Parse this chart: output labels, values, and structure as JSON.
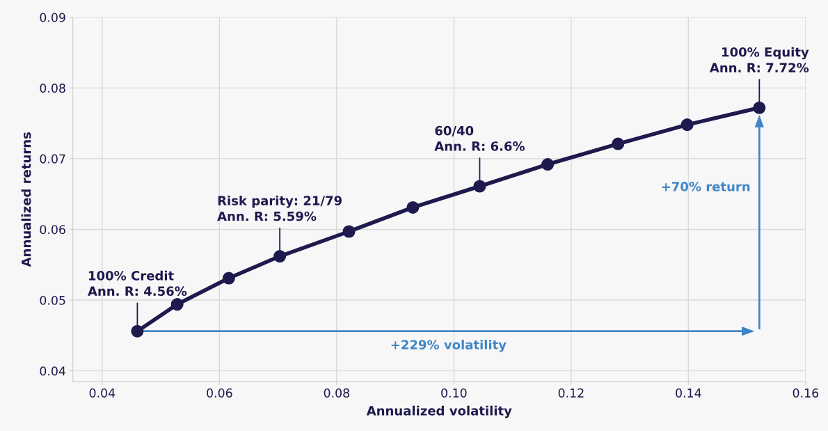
{
  "chart_data": {
    "type": "line",
    "xlabel": "Annualized volatility",
    "ylabel": "Annualized returns",
    "x": [
      0.046,
      0.0528,
      0.0616,
      0.0703,
      0.0821,
      0.093,
      0.1044,
      0.116,
      0.128,
      0.1398,
      0.1521
    ],
    "series": [
      {
        "color": "#1e1a4d",
        "values": [
          0.0456,
          0.0494,
          0.0531,
          0.0562,
          0.0597,
          0.0631,
          0.0661,
          0.0692,
          0.0721,
          0.0748,
          0.0772
        ]
      }
    ],
    "xlim": [
      0.035,
      0.16
    ],
    "ylim": [
      0.0385,
      0.09
    ],
    "xticks": [
      {
        "value": 0.04,
        "label": "0.04"
      },
      {
        "value": 0.06,
        "label": "0.06"
      },
      {
        "value": 0.08,
        "label": "0.08"
      },
      {
        "value": 0.1,
        "label": "0.10"
      },
      {
        "value": 0.12,
        "label": "0.12"
      },
      {
        "value": 0.14,
        "label": "0.14"
      },
      {
        "value": 0.16,
        "label": "0.16"
      }
    ],
    "yticks": [
      {
        "value": 0.04,
        "label": "0.04"
      },
      {
        "value": 0.05,
        "label": "0.05"
      },
      {
        "value": 0.06,
        "label": "0.06"
      },
      {
        "value": 0.07,
        "label": "0.07"
      },
      {
        "value": 0.08,
        "label": "0.08"
      },
      {
        "value": 0.09,
        "label": "0.09"
      }
    ],
    "grid": true,
    "marker": "circle",
    "line_style": "solid",
    "annotations": [
      {
        "text": "100% Credit\nAnn. R: 4.56%",
        "x": 0.046,
        "y": 0.0456
      },
      {
        "text": "Risk parity: 21/79\nAnn. R: 5.59%",
        "x": 0.0703,
        "y": 0.0562
      },
      {
        "text": "60/40\nAnn. R: 6.6%",
        "x": 0.1044,
        "y": 0.0661
      },
      {
        "text": "100% Equity\nAnn. R: 7.72%",
        "x": 0.1521,
        "y": 0.0772
      },
      "+229% volatility",
      "+70% return"
    ]
  }
}
